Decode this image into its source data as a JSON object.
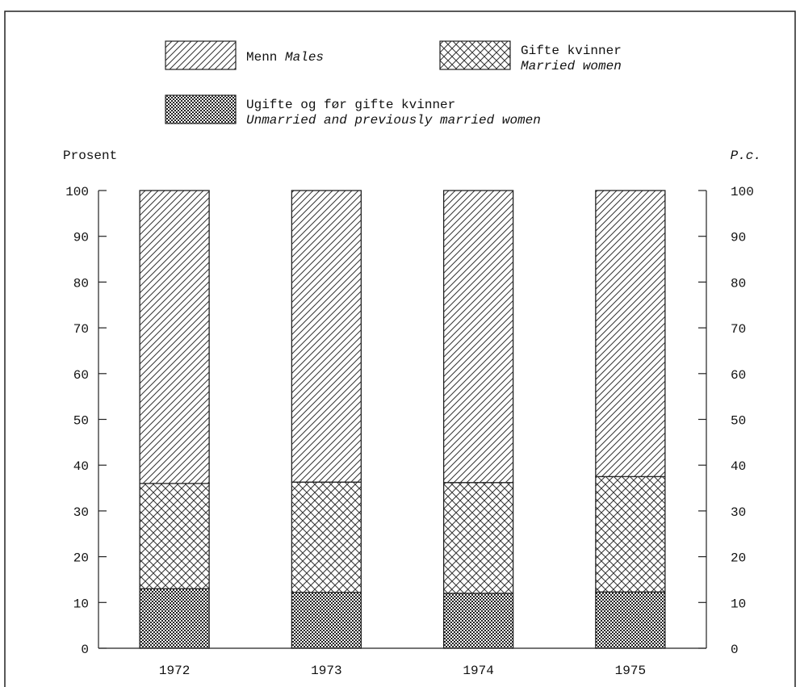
{
  "chart_data": {
    "type": "bar",
    "stacked": true,
    "categories": [
      "1972",
      "1973",
      "1974",
      "1975"
    ],
    "series": [
      {
        "name": "Ugifte og før gifte kvinner",
        "name_en": "Unmarried and previously married women",
        "pattern": "dots",
        "values": [
          13.0,
          12.2,
          12.0,
          12.3
        ]
      },
      {
        "name": "Gifte kvinner",
        "name_en": "Married women",
        "pattern": "crosshatch",
        "values": [
          23.0,
          24.1,
          24.2,
          25.2
        ]
      },
      {
        "name": "Menn",
        "name_en": "Males",
        "pattern": "diagonal",
        "values": [
          64.0,
          63.7,
          63.8,
          62.5
        ]
      }
    ],
    "ylim": [
      0,
      100
    ],
    "yticks": [
      0,
      10,
      20,
      30,
      40,
      50,
      60,
      70,
      80,
      90,
      100
    ],
    "ylabel_left": "Prosent",
    "ylabel_right": "P.c.",
    "legend_placement": "top",
    "grid": false
  }
}
